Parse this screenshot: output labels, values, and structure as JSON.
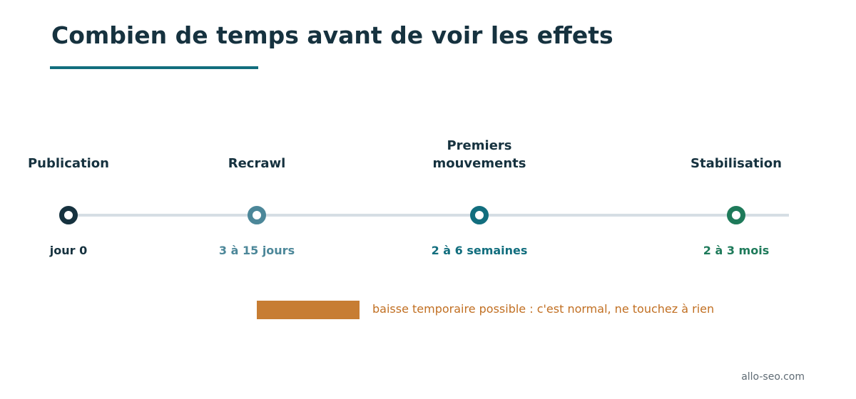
{
  "title": "Combien de temps avant de voir les effets",
  "stages": [
    {
      "label": "Publication",
      "duration": "jour 0",
      "color": "#16323f"
    },
    {
      "label": "Recrawl",
      "duration": "3 à 15 jours",
      "color": "#4c8799"
    },
    {
      "label": "Premiers\nmouvements",
      "duration": "2 à 6 semaines",
      "color": "#126e7e"
    },
    {
      "label": "Stabilisation",
      "duration": "2 à 3 mois",
      "color": "#1e7a5a"
    }
  ],
  "warning": {
    "text": "baisse temporaire possible : c'est normal, ne touchez à rien",
    "color": "#c77d33"
  },
  "source": "allo-seo.com"
}
